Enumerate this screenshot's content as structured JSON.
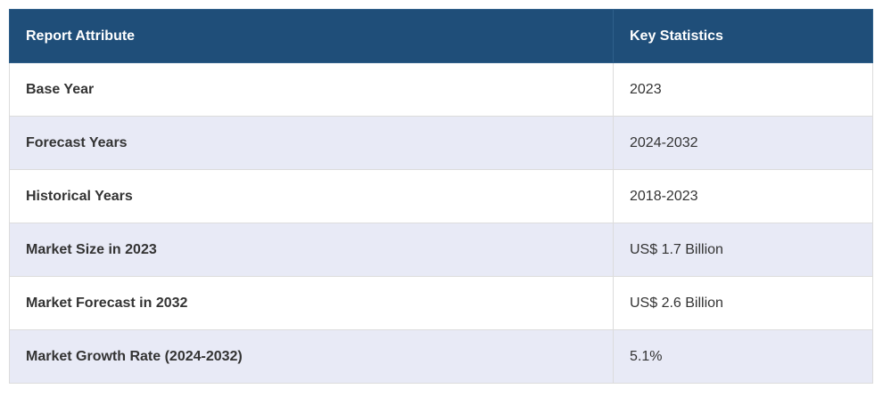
{
  "table": {
    "header": [
      "Report Attribute",
      "Key Statistics"
    ],
    "rows": [
      [
        "Base Year",
        "2023"
      ],
      [
        "Forecast Years",
        "2024-2032"
      ],
      [
        "Historical Years",
        "2018-2023"
      ],
      [
        "Market Size in 2023",
        "US$ 1.7 Billion"
      ],
      [
        "Market Forecast in 2032",
        "US$ 2.6 Billion"
      ],
      [
        "Market Growth Rate (2024-2032)",
        "5.1%"
      ]
    ]
  }
}
